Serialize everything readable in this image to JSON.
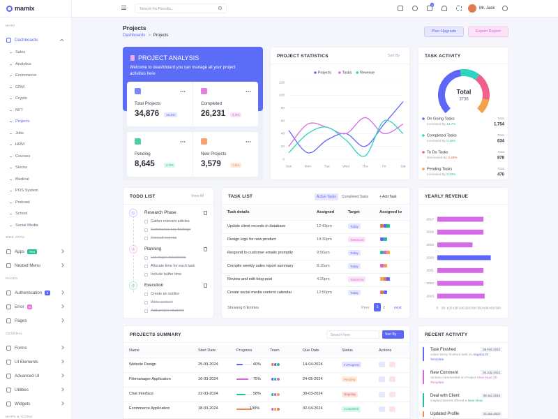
{
  "sidebar": {
    "logo": "mamix",
    "sections": [
      {
        "title": "MAIN",
        "items": [
          {
            "label": "Dashboards",
            "active": true,
            "children": [
              {
                "label": "Sales"
              },
              {
                "label": "Analytics"
              },
              {
                "label": "Ecommerce"
              },
              {
                "label": "CRM"
              },
              {
                "label": "Crypto"
              },
              {
                "label": "NFT"
              },
              {
                "label": "Projects",
                "active": true
              },
              {
                "label": "Jobs"
              },
              {
                "label": "HRM"
              },
              {
                "label": "Courses"
              },
              {
                "label": "Stocks"
              },
              {
                "label": "Medical"
              },
              {
                "label": "POS System"
              },
              {
                "label": "Podcast"
              },
              {
                "label": "School"
              },
              {
                "label": "Social Media"
              }
            ]
          }
        ]
      },
      {
        "title": "WEB APPS",
        "items": [
          {
            "label": "Apps",
            "badge": "New",
            "badge_color": "#26bf94"
          },
          {
            "label": "Nested Menu"
          }
        ]
      },
      {
        "title": "PAGES",
        "items": [
          {
            "label": "Authentication",
            "badge": "8",
            "badge_color": "#5c67f7"
          },
          {
            "label": "Error",
            "badge": "6",
            "badge_color": "#e879d8"
          },
          {
            "label": "Pages"
          }
        ]
      },
      {
        "title": "GENERAL",
        "items": [
          {
            "label": "Forms"
          },
          {
            "label": "UI Elements"
          },
          {
            "label": "Advanced UI"
          },
          {
            "label": "Utilities"
          },
          {
            "label": "Widgets"
          }
        ]
      },
      {
        "title": "MAPS & ICONS",
        "items": []
      }
    ]
  },
  "header": {
    "search": "Search for Results...",
    "cart_badge": "5",
    "user": "Mr. Jack"
  },
  "page": {
    "title": "Projects",
    "breadcrumb": [
      "Dashboards",
      "Projects"
    ],
    "breadcrumb_separator": ">",
    "buttons": [
      "Plan Upgrade",
      "Export Report"
    ]
  },
  "project_analysis": {
    "title": "PROJECT ANALYSIS",
    "text": "Welcome to deashboard you can manage all your project activities here",
    "stats": [
      {
        "label": "Total Projects",
        "value": "34,876",
        "change": "10.2%",
        "color": "#5c67f7",
        "badge_bg": "#e6e7fd"
      },
      {
        "label": "Completed",
        "value": "26,231",
        "change": "3.3%",
        "color": "#d863d4",
        "badge_bg": "#fbe3f7"
      },
      {
        "label": "Pending",
        "value": "8,645",
        "change": "2.1%",
        "color": "#26bf94",
        "badge_bg": "#dcf7ee"
      },
      {
        "label": "New Projects",
        "value": "3,579",
        "change": "7.6%",
        "color": "#f5894a",
        "badge_bg": "#fdeadd"
      }
    ]
  },
  "chart_data": [
    {
      "type": "line",
      "title": "PROJECT STATISTICS",
      "sort_label": "Sort By",
      "categories": [
        "Sun",
        "Mon",
        "Tue",
        "Wed",
        "Thu",
        "Fri",
        "Sat"
      ],
      "series": [
        {
          "name": "Projects",
          "color": "#5c67f7",
          "values": [
            45,
            10,
            30,
            40,
            20,
            55,
            90
          ]
        },
        {
          "name": "Tasks",
          "color": "#d86ee5",
          "values": [
            20,
            55,
            50,
            40,
            65,
            40,
            55
          ]
        },
        {
          "name": "Revenue",
          "color": "#2dd4bf",
          "values": [
            10,
            40,
            50,
            30,
            5,
            60,
            40
          ]
        }
      ],
      "ylim": [
        0,
        120
      ],
      "yticks": [
        0,
        20,
        40,
        60,
        80,
        100,
        120
      ],
      "grid": true,
      "legend": "top"
    },
    {
      "type": "donut",
      "title": "TASK ACTIVITY",
      "center_label": "Total",
      "center_value": 3736,
      "categories": [
        "On Going Tasks",
        "Completed Tasks",
        "To Do Tasks",
        "Pending Tasks"
      ],
      "values": [
        1754,
        634,
        878,
        470
      ],
      "value_labels": [
        "1,754",
        "634",
        "878",
        "470"
      ],
      "colors": [
        "#5c67f7",
        "#2dd4bf",
        "#f0608a",
        "#f5a04a"
      ],
      "total_label": "Total",
      "trend_labels": [
        "Increased By",
        "Increased By",
        "Decreased By",
        "Increased By"
      ],
      "trend_values": [
        "14.7%",
        "0.46%",
        "3.43%",
        "0.33%"
      ],
      "trend_colors": [
        "#26bf94",
        "#26bf94",
        "#e6533c",
        "#26bf94"
      ]
    },
    {
      "type": "bar",
      "orientation": "horizontal",
      "title": "YEARLY REVENUE",
      "categories": [
        "2017",
        "2018",
        "2019",
        "2020",
        "2021",
        "2022",
        "2023"
      ],
      "values": [
        380,
        380,
        290,
        440,
        380,
        380,
        390
      ],
      "colors": [
        "#d56ae6",
        "#d56ae6",
        "#d56ae6",
        "#5c67f7",
        "#d56ae6",
        "#d56ae6",
        "#d56ae6"
      ],
      "xlim": [
        0,
        500
      ],
      "xticks": [
        0,
        50,
        100,
        150,
        200,
        250,
        300,
        350,
        400,
        450,
        500
      ]
    }
  ],
  "todo": {
    "title": "TODO LIST",
    "view_all": "View All",
    "groups": [
      {
        "title": "Research Phase",
        "color": "#5c67f7",
        "items": [
          {
            "text": "Gather relevant articles",
            "done": false
          },
          {
            "text": "Summarize key findings",
            "done": true
          },
          {
            "text": "Consult experts",
            "done": true
          }
        ]
      },
      {
        "title": "Planning",
        "color": "#d863d4",
        "items": [
          {
            "text": "List major milestones",
            "done": true
          },
          {
            "text": "Allocate time for each task",
            "done": false
          },
          {
            "text": "Include buffer time",
            "done": false
          }
        ]
      },
      {
        "title": "Execution",
        "color": "#26bf94",
        "items": [
          {
            "text": "Create an outline",
            "done": false
          },
          {
            "text": "Write content",
            "done": true
          },
          {
            "text": "Add proper citations",
            "done": true
          }
        ]
      }
    ]
  },
  "task_list": {
    "title": "TASK LIST",
    "tabs": [
      "Active Tasks",
      "Completed Tasks"
    ],
    "add_label": "+ Add Task",
    "columns": [
      "Task details",
      "Assigned",
      "Target",
      "Assigned to"
    ],
    "rows": [
      {
        "task": "Update client records in database",
        "time": "12:43pm",
        "target": "Today",
        "target_color": "#5c67f7",
        "target_bg": "#e6e7fd"
      },
      {
        "task": "Design logo for new product",
        "time": "10:30pm",
        "target": "Tomorrow",
        "target_color": "#d863d4",
        "target_bg": "#fbe3f7"
      },
      {
        "task": "Respond to customer emails promptly",
        "time": "9:56am",
        "target": "Today",
        "target_color": "#5c67f7",
        "target_bg": "#e6e7fd"
      },
      {
        "task": "Compile weekly sales report summary",
        "time": "8:15am",
        "target": "Today",
        "target_color": "#5c67f7",
        "target_bg": "#e6e7fd"
      },
      {
        "task": "Review and edit blog post",
        "time": "4:20pm",
        "target": "Tomorrow",
        "target_color": "#d863d4",
        "target_bg": "#fbe3f7"
      },
      {
        "task": "Create social media content calendar",
        "time": "12:50pm",
        "target": "Today",
        "target_color": "#5c67f7",
        "target_bg": "#e6e7fd"
      }
    ],
    "footer": "Showing 6 Entries",
    "pagination": [
      "Prev",
      "1",
      "2",
      "next"
    ]
  },
  "projects_summary": {
    "title": "PROJECTS SUMMARY",
    "search": "Search Here",
    "sort_label": "Sort By",
    "columns": [
      "Name",
      "Start Date",
      "Progress",
      "Team",
      "Due Date",
      "Status",
      "Actions"
    ],
    "rows": [
      {
        "name": "Website Design",
        "start": "25-03-2024",
        "progress": 40,
        "progress_label": "40%",
        "color": "#5c67f7",
        "due": "14-04-2024",
        "status": "In Progress",
        "status_color": "#5c67f7",
        "status_bg": "#e6e7fd"
      },
      {
        "name": "Filemanager Application",
        "start": "16-03-2024",
        "progress": 75,
        "progress_label": "75%",
        "color": "#d863d4",
        "due": "24-05-2024",
        "status": "Pending",
        "status_color": "#f5894a",
        "status_bg": "#fdeadd"
      },
      {
        "name": "Chat Interface",
        "start": "22-03-2024",
        "progress": 58,
        "progress_label": "58%",
        "color": "#26bf94",
        "due": "30-03-2024",
        "status": "Ongoing",
        "status_color": "#e6533c",
        "status_bg": "#fde4e4"
      },
      {
        "name": "Ecommerce Application",
        "start": "18-03-2024",
        "progress": 100,
        "progress_label": "100%",
        "color": "#f5894a",
        "due": "02-04-2024",
        "status": "Completed",
        "status_color": "#26bf94",
        "status_bg": "#dcf7ee"
      }
    ]
  },
  "recent_activity": {
    "title": "RECENT ACTIVITY",
    "items": [
      {
        "title": "Task Finished",
        "date": "09 Feb 2024",
        "text": "Adam Berry finished task on",
        "highlight": "AngularJS Template",
        "color": "#5c67f7"
      },
      {
        "title": "New Comment",
        "date": "05 July 2024",
        "text": "Victoria commented on Project",
        "highlight": "Vnex Nuxt JS Template",
        "color": "#d863d4"
      },
      {
        "title": "Deal with Client",
        "date": "29 Jan 2024",
        "text": "Caylord Barrett offered a",
        "highlight": "New Deal",
        "color": "#26bf94"
      },
      {
        "title": "Updated Profile",
        "date": "10 Jan 2024",
        "color": "#f5894a"
      }
    ]
  }
}
